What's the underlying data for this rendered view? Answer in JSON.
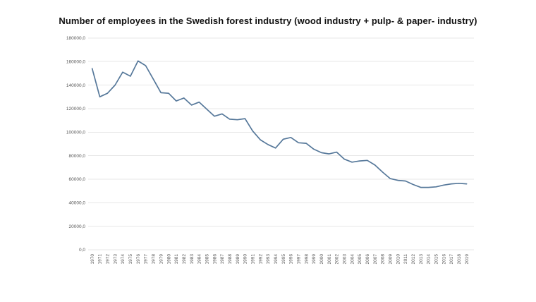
{
  "page": {
    "background_color": "#ffffff"
  },
  "chart_data": {
    "type": "line",
    "title": "Number of employees in the Swedish forest industry (wood industry + pulp- & paper- industry)",
    "xlabel": "",
    "ylabel": "",
    "ylim": [
      0,
      180000
    ],
    "y_tick_step": 20000,
    "y_tick_labels": [
      "0,0",
      "20000,0",
      "40000,0",
      "60000,0",
      "80000,0",
      "100000,0",
      "120000,0",
      "140000,0",
      "160000,0",
      "180000,0"
    ],
    "grid": true,
    "legend": "none",
    "line_color": "#56789a",
    "gridline_color": "#e7e7e7",
    "axis_label_color": "#595959",
    "x": [
      1970,
      1971,
      1972,
      1973,
      1974,
      1975,
      1976,
      1977,
      1978,
      1979,
      1980,
      1981,
      1982,
      1983,
      1984,
      1985,
      1986,
      1987,
      1988,
      1989,
      1990,
      1991,
      1992,
      1993,
      1994,
      1995,
      1996,
      1997,
      1998,
      1999,
      2000,
      2001,
      2002,
      2003,
      2004,
      2005,
      2006,
      2007,
      2008,
      2009,
      2010,
      2011,
      2012,
      2013,
      2014,
      2015,
      2016,
      2017,
      2018,
      2019
    ],
    "series": [
      {
        "name": "Number of employees",
        "values": [
          154000,
          130000,
          133000,
          140000,
          151000,
          147500,
          160500,
          156500,
          145000,
          133500,
          133000,
          126500,
          129000,
          123000,
          125500,
          119500,
          113500,
          115500,
          111000,
          110500,
          111500,
          101000,
          93500,
          89500,
          86500,
          94000,
          95500,
          91000,
          90500,
          85500,
          82500,
          81500,
          83000,
          77000,
          74500,
          75500,
          76000,
          72000,
          66000,
          60500,
          59000,
          58500,
          55500,
          53000,
          53000,
          53500,
          55000,
          56000,
          56500,
          56000
        ]
      }
    ]
  }
}
